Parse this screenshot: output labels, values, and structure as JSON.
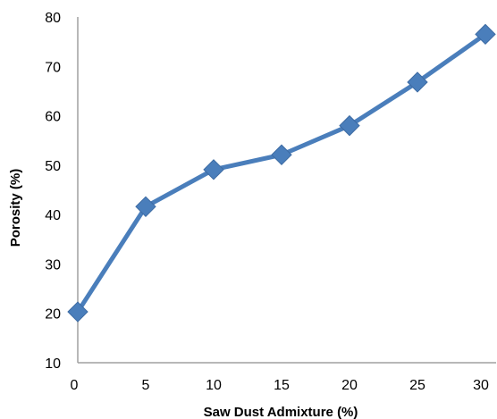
{
  "chart_data": {
    "type": "line",
    "xlabel": "Saw Dust Admixture (%)",
    "ylabel": "Porosity (%)",
    "xlim": [
      0,
      30
    ],
    "ylim": [
      10,
      80
    ],
    "xticks": [
      "0",
      "5",
      "10",
      "15",
      "20",
      "25",
      "30"
    ],
    "yticks": [
      "10",
      "20",
      "30",
      "40",
      "50",
      "60",
      "70",
      "80"
    ],
    "grid": false,
    "series": [
      {
        "marker": "diamond",
        "color": "#4a7ebb",
        "x": [
          0,
          5,
          10,
          15,
          20,
          25,
          30
        ],
        "y": [
          20.3,
          41.6,
          49.1,
          52.1,
          58.0,
          66.8,
          76.5
        ]
      }
    ]
  }
}
